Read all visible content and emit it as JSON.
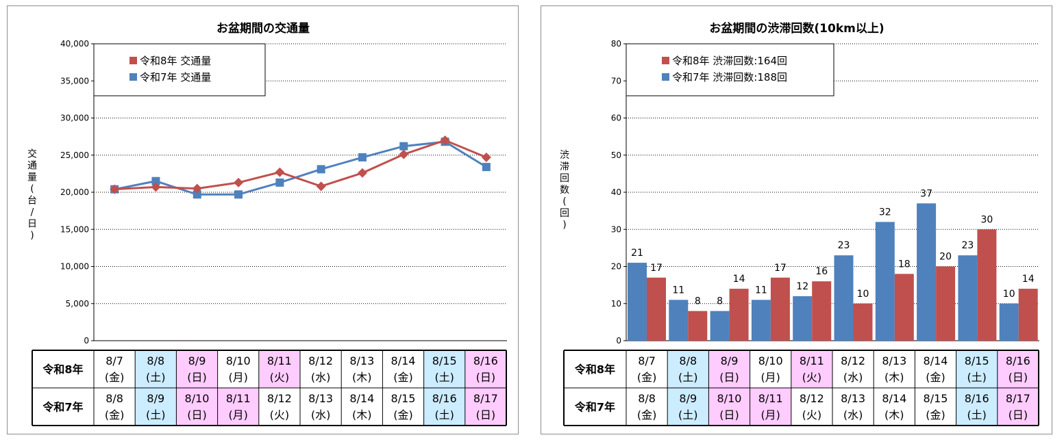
{
  "colors": {
    "series_r8": "#c0504d",
    "series_r7": "#4f81bd",
    "sat_fill": "#ccecff",
    "holiday_fill": "#ffccff"
  },
  "left_panel": {
    "table": {
      "row_labels": [
        "令和8年",
        "令和7年"
      ],
      "row_r8": [
        {
          "date": "8/7",
          "day": "(金)",
          "type": "weekday"
        },
        {
          "date": "8/8",
          "day": "(土)",
          "type": "sat"
        },
        {
          "date": "8/9",
          "day": "(日)",
          "type": "holiday"
        },
        {
          "date": "8/10",
          "day": "(月)",
          "type": "weekday"
        },
        {
          "date": "8/11",
          "day": "(火)",
          "type": "holiday"
        },
        {
          "date": "8/12",
          "day": "(水)",
          "type": "weekday"
        },
        {
          "date": "8/13",
          "day": "(木)",
          "type": "weekday"
        },
        {
          "date": "8/14",
          "day": "(金)",
          "type": "weekday"
        },
        {
          "date": "8/15",
          "day": "(土)",
          "type": "sat"
        },
        {
          "date": "8/16",
          "day": "(日)",
          "type": "holiday"
        }
      ],
      "row_r7": [
        {
          "date": "8/8",
          "day": "(金)",
          "type": "weekday"
        },
        {
          "date": "8/9",
          "day": "(土)",
          "type": "sat"
        },
        {
          "date": "8/10",
          "day": "(日)",
          "type": "holiday"
        },
        {
          "date": "8/11",
          "day": "(月)",
          "type": "holiday"
        },
        {
          "date": "8/12",
          "day": "(火)",
          "type": "weekday"
        },
        {
          "date": "8/13",
          "day": "(水)",
          "type": "weekday"
        },
        {
          "date": "8/14",
          "day": "(木)",
          "type": "weekday"
        },
        {
          "date": "8/15",
          "day": "(金)",
          "type": "weekday"
        },
        {
          "date": "8/16",
          "day": "(土)",
          "type": "sat"
        },
        {
          "date": "8/17",
          "day": "(日)",
          "type": "holiday"
        }
      ]
    }
  },
  "right_panel": {
    "table": {
      "row_labels": [
        "令和8年",
        "令和7年"
      ],
      "row_r8": [
        {
          "date": "8/7",
          "day": "(金)",
          "type": "weekday"
        },
        {
          "date": "8/8",
          "day": "(土)",
          "type": "sat"
        },
        {
          "date": "8/9",
          "day": "(日)",
          "type": "holiday"
        },
        {
          "date": "8/10",
          "day": "(月)",
          "type": "weekday"
        },
        {
          "date": "8/11",
          "day": "(火)",
          "type": "holiday"
        },
        {
          "date": "8/12",
          "day": "(水)",
          "type": "weekday"
        },
        {
          "date": "8/13",
          "day": "(木)",
          "type": "weekday"
        },
        {
          "date": "8/14",
          "day": "(金)",
          "type": "weekday"
        },
        {
          "date": "8/15",
          "day": "(土)",
          "type": "sat"
        },
        {
          "date": "8/16",
          "day": "(日)",
          "type": "holiday"
        }
      ],
      "row_r7": [
        {
          "date": "8/8",
          "day": "(金)",
          "type": "weekday"
        },
        {
          "date": "8/9",
          "day": "(土)",
          "type": "sat"
        },
        {
          "date": "8/10",
          "day": "(日)",
          "type": "holiday"
        },
        {
          "date": "8/11",
          "day": "(月)",
          "type": "holiday"
        },
        {
          "date": "8/12",
          "day": "(火)",
          "type": "weekday"
        },
        {
          "date": "8/13",
          "day": "(水)",
          "type": "weekday"
        },
        {
          "date": "8/14",
          "day": "(木)",
          "type": "weekday"
        },
        {
          "date": "8/15",
          "day": "(金)",
          "type": "weekday"
        },
        {
          "date": "8/16",
          "day": "(土)",
          "type": "sat"
        },
        {
          "date": "8/17",
          "day": "(日)",
          "type": "holiday"
        }
      ]
    }
  },
  "chart_data": [
    {
      "type": "line",
      "title": "お盆期間の交通量",
      "ylabel": "交通量(台/日)",
      "ylim": [
        0,
        40000
      ],
      "yticks": [
        "0",
        "5,000",
        "10,000",
        "15,000",
        "20,000",
        "25,000",
        "30,000",
        "35,000",
        "40,000"
      ],
      "grid": true,
      "legend_position": "top-left",
      "series": [
        {
          "name": "令和8年 交通量",
          "marker": "diamond",
          "color": "#c0504d",
          "values": [
            20400,
            20700,
            20500,
            21300,
            22700,
            20800,
            22600,
            25100,
            27000,
            24700
          ]
        },
        {
          "name": "令和7年 交通量",
          "marker": "square",
          "color": "#4f81bd",
          "values": [
            20400,
            21500,
            19700,
            19700,
            21300,
            23100,
            24700,
            26200,
            26800,
            23400
          ]
        }
      ]
    },
    {
      "type": "bar",
      "title": "お盆期間の渋滞回数(10km以上)",
      "ylabel": "渋滞回数(回)",
      "ylim": [
        0,
        80
      ],
      "yticks": [
        "0",
        "10",
        "20",
        "30",
        "40",
        "50",
        "60",
        "70",
        "80"
      ],
      "grid": true,
      "legend_position": "top-left",
      "series": [
        {
          "name": "令和7年 渋滞回数:188回",
          "color": "#4f81bd",
          "values": [
            21,
            11,
            8,
            11,
            12,
            23,
            32,
            37,
            23,
            10
          ]
        },
        {
          "name": "令和8年 渋滞回数:164回",
          "color": "#c0504d",
          "values": [
            17,
            8,
            14,
            17,
            16,
            10,
            18,
            20,
            30,
            14
          ]
        }
      ],
      "legend_order": [
        "令和8年 渋滞回数:164回",
        "令和7年 渋滞回数:188回"
      ]
    }
  ]
}
